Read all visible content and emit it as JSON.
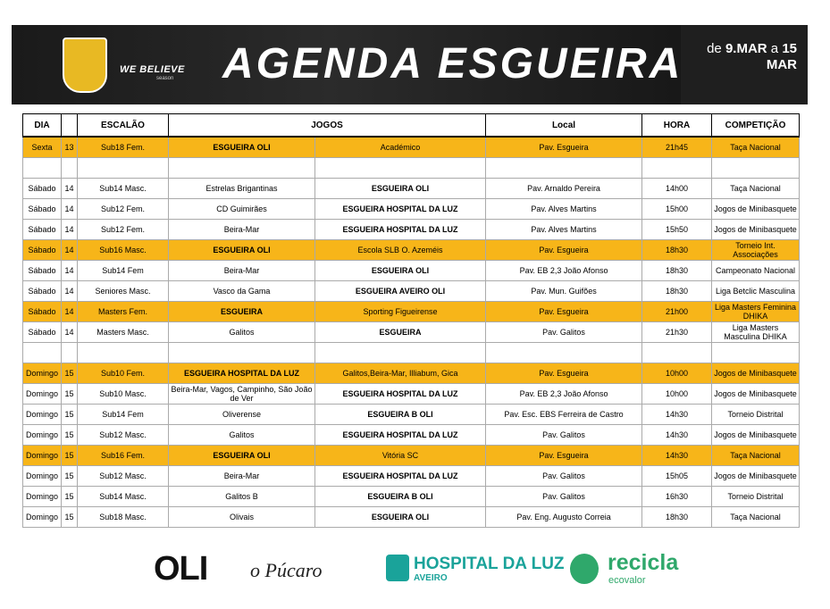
{
  "header": {
    "slogan": "WE BELIEVE",
    "season": "season",
    "title": "AGENDA ESGUEIRA",
    "date_parts": [
      "de",
      "9.MAR",
      "a",
      "15 MAR"
    ]
  },
  "table": {
    "columns": [
      "DIA",
      "ESCALÃO",
      "JOGOS",
      "Local",
      "HORA",
      "COMPETIÇÃO"
    ],
    "groups": [
      [
        {
          "day": "Sexta",
          "num": 13,
          "escalao": "Sub18 Fem.",
          "home": "ESGUEIRA OLI",
          "away": "Académico",
          "local": "Pav. Esgueira",
          "hora": "21h45",
          "competicao": "Taça Nacional",
          "highlight": true,
          "bold": "home"
        }
      ],
      [
        {
          "day": "Sábado",
          "num": 14,
          "escalao": "Sub14 Masc.",
          "home": "Estrelas Brigantinas",
          "away": "ESGUEIRA OLI",
          "local": "Pav. Arnaldo Pereira",
          "hora": "14h00",
          "competicao": "Taça Nacional",
          "highlight": false,
          "bold": "away"
        },
        {
          "day": "Sábado",
          "num": 14,
          "escalao": "Sub12 Fem.",
          "home": "CD Guimirães",
          "away": "ESGUEIRA HOSPITAL DA LUZ",
          "local": "Pav. Alves Martins",
          "hora": "15h00",
          "competicao": "Jogos de Minibasquete",
          "highlight": false,
          "bold": "away"
        },
        {
          "day": "Sábado",
          "num": 14,
          "escalao": "Sub12 Fem.",
          "home": "Beira-Mar",
          "away": "ESGUEIRA HOSPITAL DA LUZ",
          "local": "Pav. Alves Martins",
          "hora": "15h50",
          "competicao": "Jogos de Minibasquete",
          "highlight": false,
          "bold": "away"
        },
        {
          "day": "Sábado",
          "num": 14,
          "escalao": "Sub16 Masc.",
          "home": "ESGUEIRA  OLI",
          "away": "Escola SLB O. Azeméis",
          "local": "Pav. Esgueira",
          "hora": "18h30",
          "competicao": "Torneio Int. Associações",
          "highlight": true,
          "bold": "home"
        },
        {
          "day": "Sábado",
          "num": 14,
          "escalao": "Sub14 Fem",
          "home": "Beira-Mar",
          "away": "ESGUEIRA OLI",
          "local": "Pav. EB 2,3 João Afonso",
          "hora": "18h30",
          "competicao": "Campeonato Nacional",
          "highlight": false,
          "bold": "away"
        },
        {
          "day": "Sábado",
          "num": 14,
          "escalao": "Seniores Masc.",
          "home": "Vasco da Gama",
          "away": "ESGUEIRA AVEIRO OLI",
          "local": "Pav. Mun. Guifões",
          "hora": "18h30",
          "competicao": "Liga Betclic Masculina",
          "highlight": false,
          "bold": "away"
        },
        {
          "day": "Sábado",
          "num": 14,
          "escalao": "Masters Fem.",
          "home": "ESGUEIRA",
          "away": "Sporting Figueirense",
          "local": "Pav. Esgueira",
          "hora": "21h00",
          "competicao": "Liga Masters Feminina DHIKA",
          "highlight": true,
          "bold": "home"
        },
        {
          "day": "Sábado",
          "num": 14,
          "escalao": "Masters Masc.",
          "home": "Galitos",
          "away": "ESGUEIRA",
          "local": "Pav. Galitos",
          "hora": "21h30",
          "competicao": "Liga Masters Masculina DHIKA",
          "highlight": false,
          "bold": "away"
        }
      ],
      [
        {
          "day": "Domingo",
          "num": 15,
          "escalao": "Sub10 Fem.",
          "home": "ESGUEIRA HOSPITAL DA LUZ",
          "away": "Galitos,Beira-Mar, Illiabum, Gica",
          "local": "Pav. Esgueira",
          "hora": "10h00",
          "competicao": "Jogos de Minibasquete",
          "highlight": true,
          "bold": "home"
        },
        {
          "day": "Domingo",
          "num": 15,
          "escalao": "Sub10 Masc.",
          "home": "Beira-Mar, Vagos, Campinho, São João de Ver",
          "away": "ESGUEIRA HOSPITAL DA LUZ",
          "local": "Pav. EB 2,3 João Afonso",
          "hora": "10h00",
          "competicao": "Jogos de Minibasquete",
          "highlight": false,
          "bold": "away"
        },
        {
          "day": "Domingo",
          "num": 15,
          "escalao": "Sub14 Fem",
          "home": "Oliverense",
          "away": "ESGUEIRA B OLI",
          "local": "Pav. Esc. EBS Ferreira de Castro",
          "hora": "14h30",
          "competicao": "Torneio Distrital",
          "highlight": false,
          "bold": "away"
        },
        {
          "day": "Domingo",
          "num": 15,
          "escalao": "Sub12 Masc.",
          "home": "Galitos",
          "away": "ESGUEIRA HOSPITAL DA LUZ",
          "local": "Pav. Galitos",
          "hora": "14h30",
          "competicao": "Jogos de Minibasquete",
          "highlight": false,
          "bold": "away"
        },
        {
          "day": "Domingo",
          "num": 15,
          "escalao": "Sub16 Fem.",
          "home": "ESGUEIRA OLI",
          "away": "Vitória SC",
          "local": "Pav. Esgueira",
          "hora": "14h30",
          "competicao": "Taça Nacional",
          "highlight": true,
          "bold": "home"
        },
        {
          "day": "Domingo",
          "num": 15,
          "escalao": "Sub12 Masc.",
          "home": "Beira-Mar",
          "away": "ESGUEIRA HOSPITAL DA LUZ",
          "local": "Pav. Galitos",
          "hora": "15h05",
          "competicao": "Jogos de Minibasquete",
          "highlight": false,
          "bold": "away"
        },
        {
          "day": "Domingo",
          "num": 15,
          "escalao": "Sub14 Masc.",
          "home": "Galitos B",
          "away": "ESGUEIRA B OLI",
          "local": "Pav. Galitos",
          "hora": "16h30",
          "competicao": "Torneio Distrital",
          "highlight": false,
          "bold": "away"
        },
        {
          "day": "Domingo",
          "num": 15,
          "escalao": "Sub18 Masc.",
          "home": "Olivais",
          "away": "ESGUEIRA OLI",
          "local": "Pav. Eng. Augusto Correia",
          "hora": "18h30",
          "competicao": "Taça Nacional",
          "highlight": false,
          "bold": "away"
        }
      ]
    ]
  },
  "footer": {
    "sponsors": [
      "OLI",
      "o Púcaro",
      "HOSPITAL DA LUZ",
      "AVEIRO",
      "recicla",
      "ecovalor"
    ]
  }
}
